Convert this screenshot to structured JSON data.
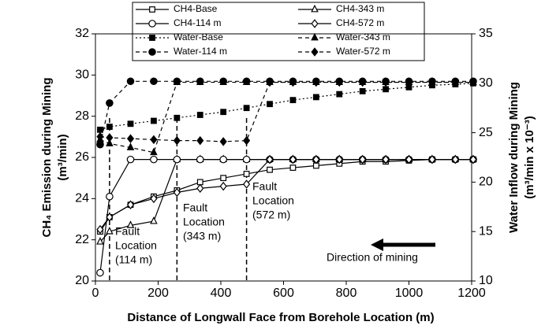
{
  "chart_data": {
    "type": "line",
    "xlabel": "Distance of Longwall Face from Borehole Location (m)",
    "ylabel": [
      "CH₄ Emission during Mining",
      "(m³/min)"
    ],
    "y2label": [
      "Water Inflow during Mining",
      "(m³/min x 10⁻³)"
    ],
    "x": [
      15,
      45,
      112,
      186,
      260,
      334,
      408,
      482,
      556,
      630,
      704,
      778,
      852,
      926,
      1000,
      1074,
      1148,
      1205
    ],
    "xlim": [
      0,
      1200
    ],
    "xticks": [
      0,
      200,
      400,
      600,
      800,
      1000,
      1200
    ],
    "ylim": [
      20,
      32
    ],
    "yticks": [
      20,
      22,
      24,
      26,
      28,
      30,
      32
    ],
    "y2lim": [
      10,
      35
    ],
    "y2ticks": [
      10,
      15,
      20,
      25,
      30,
      35
    ],
    "series": [
      {
        "name": "CH4-Base",
        "color": "#000000",
        "marker": "square",
        "filled": false,
        "dash": "solid",
        "values": [
          22.4,
          23.1,
          23.7,
          24.1,
          24.4,
          24.8,
          25.0,
          25.2,
          25.4,
          25.5,
          25.6,
          25.7,
          25.8,
          25.8,
          25.85,
          25.9,
          25.9,
          25.9
        ]
      },
      {
        "name": "CH4-343 m",
        "color": "#000000",
        "marker": "triangle",
        "filled": false,
        "dash": "solid",
        "values": [
          21.9,
          22.4,
          22.7,
          22.9,
          25.9,
          25.9,
          25.9,
          25.9,
          25.9,
          25.9,
          25.9,
          25.9,
          25.9,
          25.9,
          25.9,
          25.9,
          25.9,
          25.9
        ]
      },
      {
        "name": "CH4-114 m",
        "color": "#000000",
        "marker": "circle",
        "filled": false,
        "dash": "solid",
        "values": [
          20.4,
          24.1,
          25.9,
          25.9,
          25.9,
          25.9,
          25.9,
          25.9,
          25.9,
          25.9,
          25.9,
          25.9,
          25.9,
          25.9,
          25.9,
          25.9,
          25.9,
          25.9
        ]
      },
      {
        "name": "CH4-572 m",
        "color": "#000000",
        "marker": "diamond",
        "filled": false,
        "dash": "solid",
        "values": [
          22.5,
          23.1,
          23.7,
          24.0,
          24.3,
          24.5,
          24.6,
          24.7,
          25.9,
          25.9,
          25.9,
          25.9,
          25.9,
          25.9,
          25.9,
          25.9,
          25.9,
          25.9
        ]
      },
      {
        "name": "Water-Base",
        "color": "#000000",
        "marker": "square",
        "filled": true,
        "dash": "dotted",
        "axis": "y2",
        "values": [
          25.3,
          25.6,
          25.9,
          26.2,
          26.5,
          26.8,
          27.1,
          27.5,
          27.9,
          28.3,
          28.6,
          28.9,
          29.2,
          29.4,
          29.6,
          29.8,
          29.9,
          30.0
        ]
      },
      {
        "name": "Water-343 m",
        "color": "#000000",
        "marker": "triangle",
        "filled": true,
        "dash": "dashed",
        "axis": "y2",
        "values": [
          24.3,
          23.9,
          23.5,
          23.0,
          30.1,
          30.1,
          30.1,
          30.1,
          30.1,
          30.1,
          30.1,
          30.1,
          30.1,
          30.1,
          30.1,
          30.1,
          30.1,
          30.1
        ]
      },
      {
        "name": "Water-114 m",
        "color": "#000000",
        "marker": "circle",
        "filled": true,
        "dash": "dashed",
        "axis": "y2",
        "values": [
          23.8,
          28.0,
          30.2,
          30.2,
          30.2,
          30.2,
          30.2,
          30.2,
          30.2,
          30.2,
          30.2,
          30.2,
          30.2,
          30.2,
          30.2,
          30.2,
          30.2,
          30.2
        ]
      },
      {
        "name": "Water-572 m",
        "color": "#000000",
        "marker": "diamond",
        "filled": true,
        "dash": "dashed",
        "axis": "y2",
        "values": [
          24.6,
          24.5,
          24.4,
          24.3,
          24.2,
          24.2,
          24.1,
          24.2,
          30.1,
          30.1,
          30.1,
          30.1,
          30.1,
          30.1,
          30.1,
          30.1,
          30.1,
          30.1
        ]
      }
    ],
    "annotations": [
      {
        "x": 45,
        "lines": [
          "Fault",
          "Location",
          "(114 m)"
        ]
      },
      {
        "x": 260,
        "lines": [
          "Fault",
          "Location",
          "(343 m)"
        ]
      },
      {
        "x": 482,
        "lines": [
          "Fault",
          "Location",
          "(572 m)"
        ]
      }
    ],
    "arrow_label": "Direction of mining"
  }
}
